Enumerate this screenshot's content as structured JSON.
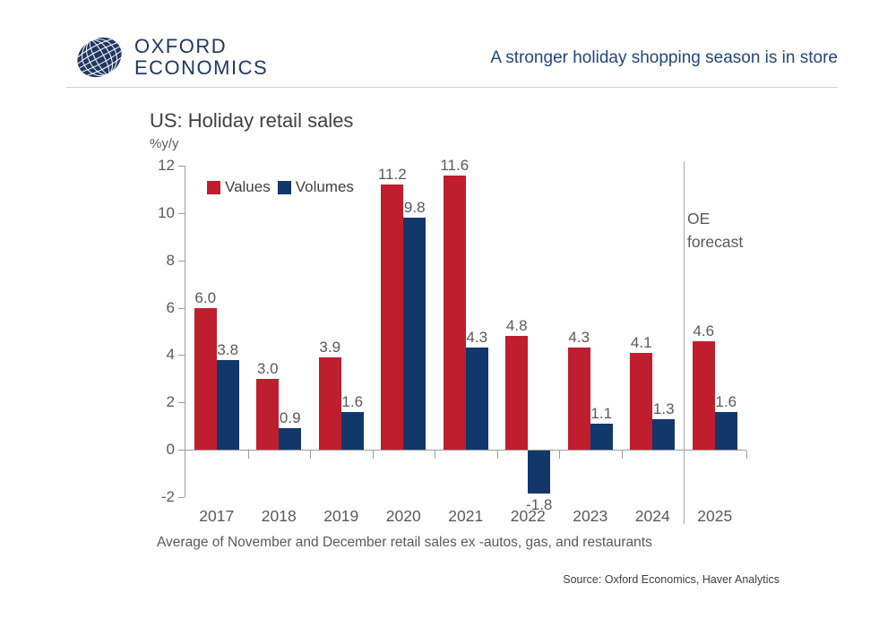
{
  "header": {
    "logo_line1": "OXFORD",
    "logo_line2": "ECONOMICS",
    "logo_color": "#1f3864",
    "headline": "A stronger holiday shopping season is in store"
  },
  "chart_data": {
    "type": "bar",
    "title": "US: Holiday retail sales",
    "ylabel": "%y/y",
    "xlabel": "",
    "categories": [
      "2017",
      "2018",
      "2019",
      "2020",
      "2021",
      "2022",
      "2023",
      "2024",
      "2025"
    ],
    "series": [
      {
        "name": "Values",
        "color": "#bf1e2e",
        "values": [
          6.0,
          3.0,
          3.9,
          11.2,
          11.6,
          4.8,
          4.3,
          4.1,
          4.6
        ],
        "labels": [
          "6.0",
          "3.0",
          "3.9",
          "11.2",
          "11.6",
          "4.8",
          "4.3",
          "4.1",
          "4.6"
        ]
      },
      {
        "name": "Volumes",
        "color": "#12386b",
        "values": [
          3.8,
          0.9,
          1.6,
          9.8,
          4.3,
          -1.8,
          1.1,
          1.3,
          1.6
        ],
        "labels": [
          "3.8",
          "0.9",
          "1.6",
          "9.8",
          "4.3",
          "-1.8",
          "1.1",
          "1.3",
          "1.6"
        ]
      }
    ],
    "yticks": [
      12,
      10,
      8,
      6,
      4,
      2,
      0,
      -2
    ],
    "ylim": [
      -2,
      12
    ],
    "grid": false,
    "legend_position": "top-left-inside",
    "forecast": {
      "label": "OE forecast",
      "starts_at_category": "2025"
    },
    "footnote": "Average of November and December retail sales ex -autos, gas, and restaurants",
    "source": "Source: Oxford Economics, Haver Analytics"
  }
}
